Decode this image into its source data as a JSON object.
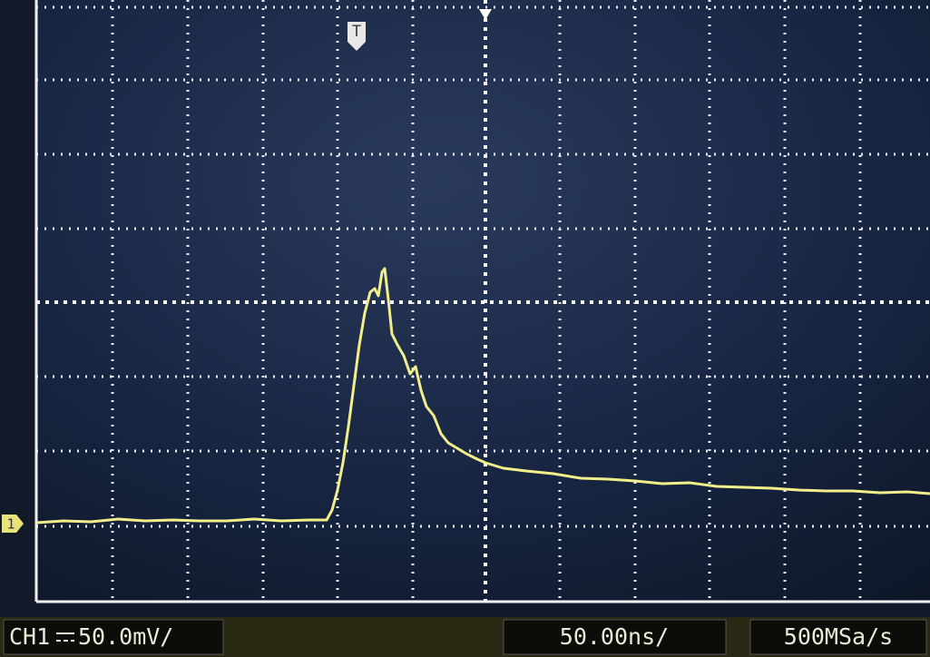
{
  "screen": {
    "trigger_marker": "T",
    "channel_marker": "1"
  },
  "status_bar": {
    "channel": "CH1",
    "volts_per_div": "50.0mV/",
    "time_per_div": "50.00ns/",
    "sample_rate": "500MSa/s"
  }
}
